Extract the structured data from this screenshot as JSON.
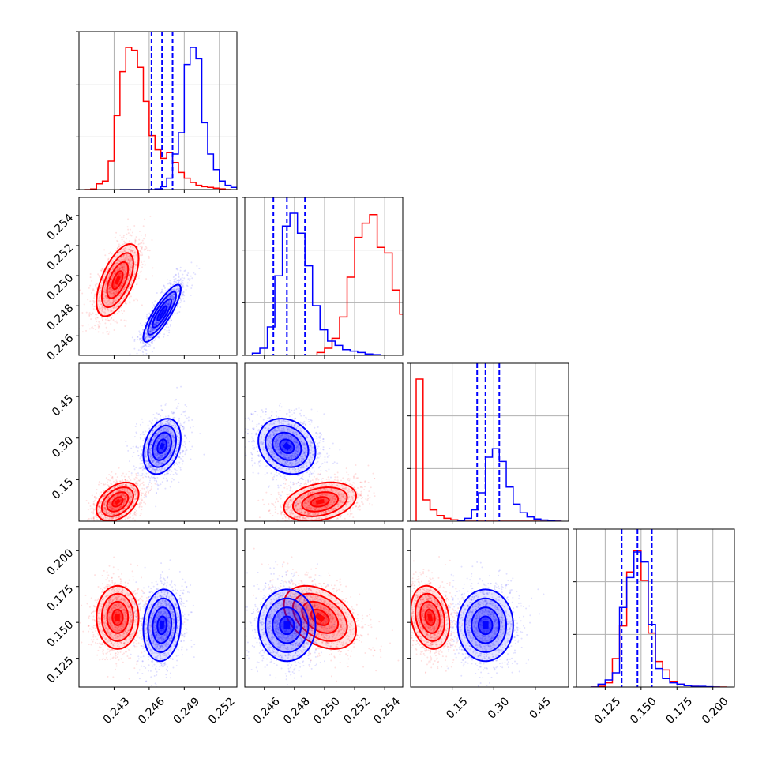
{
  "chart_data": {
    "type": "corner",
    "grid": true,
    "colors": {
      "model_a": "#ff0000",
      "model_b": "#0000ff"
    },
    "parameters": [
      {
        "range": [
          0.24,
          0.2535
        ],
        "ticks": [
          0.243,
          0.246,
          0.249,
          0.252
        ],
        "tick_labels": [
          "0.243",
          "0.246",
          "0.249",
          "0.252"
        ]
      },
      {
        "range": [
          0.2447,
          0.2552
        ],
        "ticks": [
          0.246,
          0.248,
          0.25,
          0.252,
          0.254
        ],
        "tick_labels": [
          "0.246",
          "0.248",
          "0.250",
          "0.252",
          "0.254"
        ]
      },
      {
        "range": [
          0.0,
          0.57
        ],
        "ticks": [
          0.15,
          0.3,
          0.45
        ],
        "tick_labels": [
          "0.15",
          "0.30",
          "0.45"
        ]
      },
      {
        "range": [
          0.105,
          0.215
        ],
        "ticks": [
          0.125,
          0.15,
          0.175,
          0.2
        ],
        "tick_labels": [
          "0.125",
          "0.150",
          "0.175",
          "0.200"
        ]
      }
    ],
    "series": [
      {
        "key": "model_a",
        "color": "#ff0000",
        "means": [
          0.2433,
          0.2497,
          0.07,
          0.1535
        ],
        "sds": [
          0.0009,
          0.0012,
          0.035,
          0.011
        ],
        "correlations": {
          "0-1": 0.6,
          "0-2": 0.4,
          "0-3": 0.0,
          "1-2": 0.3,
          "1-3": -0.4,
          "2-3": -0.2
        },
        "histograms": [
          {
            "edges_start": 0.2405,
            "bin_width": 0.0005,
            "heights": [
              0.0,
              0.004,
              0.04,
              0.06,
              0.2,
              0.52,
              0.83,
              1.0,
              0.98,
              0.86,
              0.62,
              0.38,
              0.28,
              0.22,
              0.26,
              0.19,
              0.12,
              0.08,
              0.05,
              0.03,
              0.02,
              0.015,
              0.01,
              0.005,
              0.0
            ]
          },
          {
            "edges_start": 0.2455,
            "bin_width": 0.0005,
            "heights": [
              0.0,
              0.0,
              0.0,
              0.0,
              0.0,
              0.0,
              0.0,
              0.0,
              0.02,
              0.05,
              0.12,
              0.27,
              0.55,
              0.83,
              0.93,
              0.99,
              0.76,
              0.72,
              0.46,
              0.29,
              0.21,
              0.07,
              0.05,
              0.02,
              0.0
            ]
          },
          {
            "edges_start": 0.02,
            "bin_width": 0.025,
            "heights": [
              1.0,
              0.15,
              0.08,
              0.04,
              0.02,
              0.01,
              0.0,
              0.0,
              0.0,
              0.0,
              0.0,
              0.0,
              0.0,
              0.0,
              0.0,
              0.0,
              0.0,
              0.0,
              0.0,
              0.0,
              0.0
            ]
          },
          {
            "edges_start": 0.115,
            "bin_width": 0.005,
            "heights": [
              0.0,
              0.005,
              0.03,
              0.2,
              0.43,
              0.81,
              0.96,
              0.75,
              0.38,
              0.18,
              0.12,
              0.04,
              0.02,
              0.01,
              0.005,
              0.0,
              0.0,
              0.0,
              0.0
            ]
          }
        ]
      },
      {
        "key": "model_b",
        "color": "#0000ff",
        "means": [
          0.2471,
          0.2475,
          0.27,
          0.148
        ],
        "sds": [
          0.0008,
          0.00095,
          0.05,
          0.0125
        ],
        "correlations": {
          "0-1": 0.85,
          "0-2": 0.3,
          "0-3": 0.1,
          "1-2": -0.2,
          "1-3": 0.0,
          "2-3": 0.0
        },
        "histograms": [
          {
            "edges_start": 0.2435,
            "bin_width": 0.0005,
            "heights": [
              0.0,
              0.0,
              0.0,
              0.0,
              0.0,
              0.0,
              0.005,
              0.02,
              0.08,
              0.25,
              0.4,
              0.88,
              1.0,
              0.92,
              0.47,
              0.25,
              0.14,
              0.06,
              0.03,
              0.015,
              0.01,
              0.005,
              0.0
            ]
          },
          {
            "edges_start": 0.2447,
            "bin_width": 0.0005,
            "heights": [
              0.0,
              0.015,
              0.05,
              0.2,
              0.56,
              0.91,
              1.0,
              0.86,
              0.63,
              0.35,
              0.18,
              0.1,
              0.07,
              0.04,
              0.03,
              0.02,
              0.01,
              0.005,
              0.0
            ]
          },
          {
            "edges_start": 0.17,
            "bin_width": 0.025,
            "heights": [
              0.005,
              0.02,
              0.08,
              0.2,
              0.45,
              0.51,
              0.42,
              0.24,
              0.12,
              0.06,
              0.03,
              0.015,
              0.008,
              0.004,
              0.0
            ]
          },
          {
            "edges_start": 0.115,
            "bin_width": 0.005,
            "heights": [
              0.0,
              0.02,
              0.05,
              0.1,
              0.56,
              0.77,
              0.95,
              0.88,
              0.44,
              0.13,
              0.06,
              0.03,
              0.02,
              0.01,
              0.005,
              0.005,
              0.002,
              0.0
            ]
          }
        ],
        "quantiles": [
          [
            0.2462,
            0.2471,
            0.248
          ],
          [
            0.2466,
            0.2475,
            0.2487
          ],
          [
            0.24,
            0.27,
            0.32
          ],
          [
            0.1365,
            0.1475,
            0.1575
          ]
        ]
      }
    ]
  }
}
